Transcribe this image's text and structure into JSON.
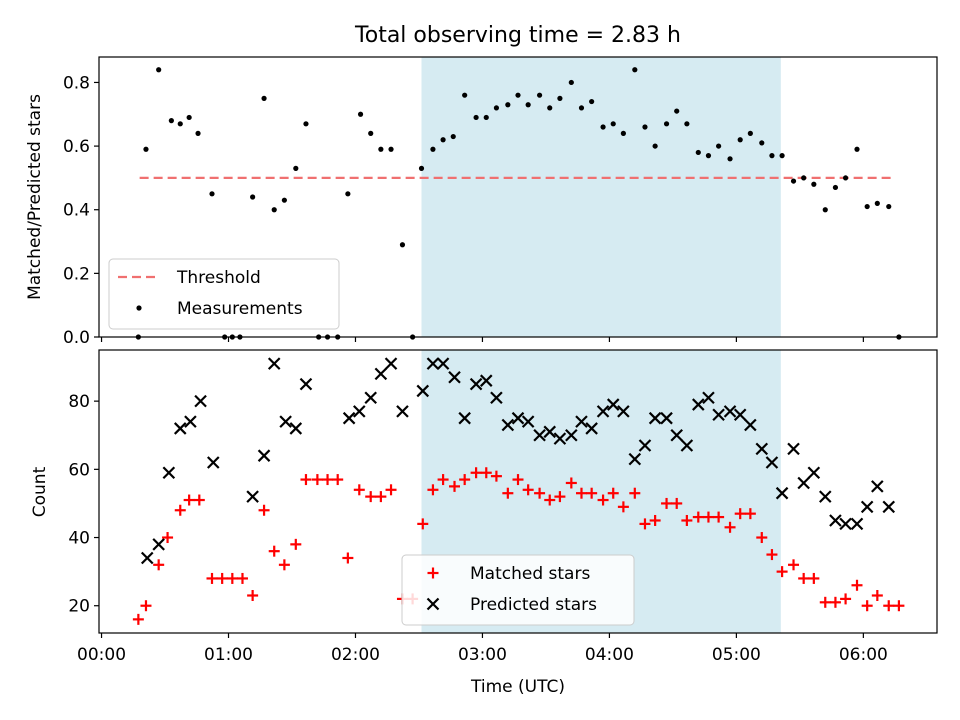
{
  "title": "Total observing time = 2.83 h",
  "colors": {
    "threshold": "#f07070",
    "measurement": "#000000",
    "matched": "#ff0000",
    "predicted": "#000000",
    "highlight": "#add8e6"
  },
  "chart_data": [
    {
      "type": "scatter",
      "panel": "top",
      "ylabel": "Matched/Predicted stars",
      "ylim": [
        0,
        0.88
      ],
      "yticks": [
        "0.0",
        "0.2",
        "0.4",
        "0.6",
        "0.8"
      ],
      "highlight_span": [
        2.52,
        5.35
      ],
      "legend": {
        "location": "lower-left",
        "entries": [
          "Threshold",
          "Measurements"
        ]
      },
      "threshold": {
        "name": "Threshold",
        "value": 0.5,
        "x_range": [
          0.3,
          6.25
        ]
      },
      "series": [
        {
          "name": "Measurements",
          "x": [
            0.29,
            0.35,
            0.45,
            0.55,
            0.62,
            0.69,
            0.76,
            0.87,
            0.97,
            1.03,
            1.09,
            1.19,
            1.28,
            1.36,
            1.44,
            1.53,
            1.61,
            1.71,
            1.78,
            1.86,
            1.94,
            2.04,
            2.12,
            2.2,
            2.28,
            2.37,
            2.45,
            2.52,
            2.61,
            2.69,
            2.77,
            2.86,
            2.95,
            3.03,
            3.11,
            3.2,
            3.28,
            3.36,
            3.45,
            3.53,
            3.61,
            3.7,
            3.78,
            3.86,
            3.95,
            4.03,
            4.11,
            4.2,
            4.28,
            4.36,
            4.45,
            4.53,
            4.61,
            4.7,
            4.78,
            4.86,
            4.95,
            5.03,
            5.11,
            5.2,
            5.28,
            5.36,
            5.45,
            5.53,
            5.61,
            5.7,
            5.78,
            5.86,
            5.95,
            6.03,
            6.11,
            6.2,
            6.28
          ],
          "y": [
            0.0,
            0.59,
            0.84,
            0.68,
            0.67,
            0.69,
            0.64,
            0.45,
            0.0,
            0.0,
            0.0,
            0.44,
            0.75,
            0.4,
            0.43,
            0.53,
            0.67,
            0.0,
            0.0,
            0.0,
            0.45,
            0.7,
            0.64,
            0.59,
            0.59,
            0.29,
            0.0,
            0.53,
            0.59,
            0.62,
            0.63,
            0.76,
            0.69,
            0.69,
            0.72,
            0.73,
            0.76,
            0.73,
            0.76,
            0.72,
            0.75,
            0.8,
            0.72,
            0.74,
            0.66,
            0.67,
            0.64,
            0.84,
            0.66,
            0.6,
            0.67,
            0.71,
            0.67,
            0.58,
            0.57,
            0.6,
            0.56,
            0.62,
            0.64,
            0.61,
            0.57,
            0.57,
            0.49,
            0.5,
            0.48,
            0.4,
            0.47,
            0.5,
            0.59,
            0.41,
            0.42,
            0.41,
            0.0
          ]
        }
      ]
    },
    {
      "type": "scatter",
      "panel": "bottom",
      "xlabel": "Time (UTC)",
      "ylabel": "Count",
      "ylim": [
        12,
        95
      ],
      "yticks": [
        "20",
        "40",
        "60",
        "80"
      ],
      "xlim": [
        -0.02,
        6.58
      ],
      "xticks": [
        {
          "value": 0,
          "label": "00:00"
        },
        {
          "value": 1,
          "label": "01:00"
        },
        {
          "value": 2,
          "label": "02:00"
        },
        {
          "value": 3,
          "label": "03:00"
        },
        {
          "value": 4,
          "label": "04:00"
        },
        {
          "value": 5,
          "label": "05:00"
        },
        {
          "value": 6,
          "label": "06:00"
        }
      ],
      "highlight_span": [
        2.52,
        5.35
      ],
      "legend": {
        "location": "lower-center",
        "entries": [
          "Matched stars",
          "Predicted stars"
        ]
      },
      "series": [
        {
          "name": "Matched stars",
          "marker": "plus",
          "x": [
            0.29,
            0.35,
            0.45,
            0.52,
            0.62,
            0.69,
            0.77,
            0.87,
            0.95,
            1.03,
            1.11,
            1.19,
            1.28,
            1.36,
            1.44,
            1.53,
            1.61,
            1.7,
            1.78,
            1.86,
            1.94,
            2.03,
            2.12,
            2.2,
            2.28,
            2.37,
            2.45,
            2.53,
            2.61,
            2.69,
            2.78,
            2.86,
            2.95,
            3.03,
            3.11,
            3.2,
            3.28,
            3.36,
            3.45,
            3.53,
            3.61,
            3.7,
            3.78,
            3.86,
            3.95,
            4.03,
            4.11,
            4.2,
            4.28,
            4.36,
            4.45,
            4.53,
            4.61,
            4.7,
            4.78,
            4.86,
            4.95,
            5.03,
            5.11,
            5.2,
            5.28,
            5.36,
            5.45,
            5.53,
            5.61,
            5.7,
            5.78,
            5.86,
            5.95,
            6.03,
            6.11,
            6.2,
            6.28
          ],
          "y": [
            16,
            20,
            32,
            40,
            48,
            51,
            51,
            28,
            28,
            28,
            28,
            23,
            48,
            36,
            32,
            38,
            57,
            57,
            57,
            57,
            34,
            54,
            52,
            52,
            54,
            22,
            22,
            44,
            54,
            57,
            55,
            57,
            59,
            59,
            58,
            53,
            57,
            54,
            53,
            51,
            52,
            56,
            53,
            53,
            51,
            53,
            49,
            53,
            44,
            45,
            50,
            50,
            45,
            46,
            46,
            46,
            43,
            47,
            47,
            40,
            35,
            30,
            32,
            28,
            28,
            21,
            21,
            22,
            26,
            20,
            23,
            20,
            20
          ]
        },
        {
          "name": "Predicted stars",
          "marker": "x",
          "x": [
            0.36,
            0.45,
            0.53,
            0.62,
            0.7,
            0.78,
            0.88,
            1.19,
            1.28,
            1.36,
            1.45,
            1.53,
            1.61,
            1.95,
            2.03,
            2.12,
            2.2,
            2.28,
            2.37,
            2.53,
            2.61,
            2.69,
            2.78,
            2.86,
            2.95,
            3.03,
            3.11,
            3.2,
            3.28,
            3.36,
            3.45,
            3.53,
            3.61,
            3.7,
            3.78,
            3.86,
            3.95,
            4.03,
            4.11,
            4.2,
            4.28,
            4.36,
            4.45,
            4.53,
            4.61,
            4.7,
            4.78,
            4.86,
            4.95,
            5.03,
            5.11,
            5.2,
            5.28,
            5.36,
            5.45,
            5.53,
            5.61,
            5.7,
            5.78,
            5.86,
            5.95,
            6.03,
            6.11,
            6.2
          ],
          "y": [
            34,
            38,
            59,
            72,
            74,
            80,
            62,
            52,
            64,
            91,
            74,
            72,
            85,
            75,
            77,
            81,
            88,
            91,
            77,
            83,
            91,
            91,
            87,
            75,
            85,
            86,
            81,
            73,
            75,
            74,
            70,
            71,
            69,
            70,
            74,
            72,
            77,
            79,
            77,
            63,
            67,
            75,
            75,
            70,
            67,
            79,
            81,
            76,
            77,
            76,
            73,
            66,
            62,
            53,
            66,
            56,
            59,
            52,
            45,
            44,
            44,
            49,
            55,
            49
          ]
        }
      ]
    }
  ]
}
